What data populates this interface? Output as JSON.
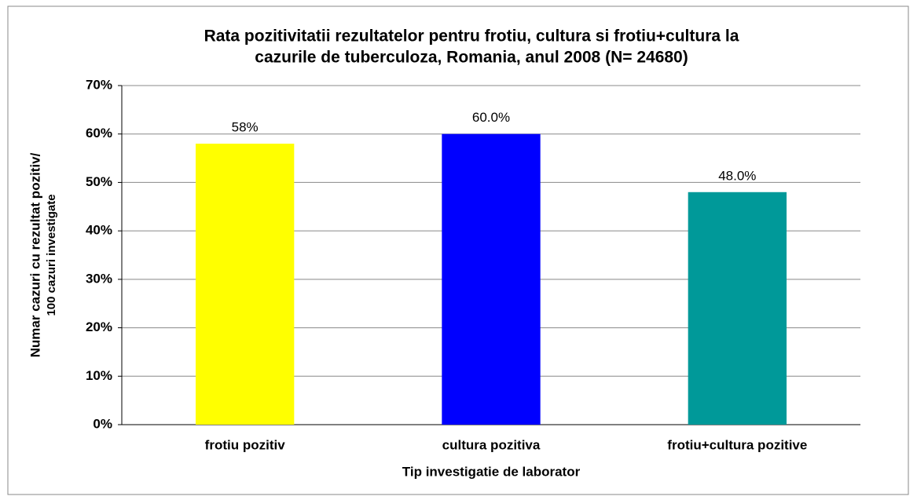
{
  "chart_data": {
    "type": "bar",
    "title": [
      "Rata pozitivitatii rezultatelor pentru frotiu, cultura si frotiu+cultura la",
      "cazurile de tuberculoza, Romania, anul 2008 (N= 24680)"
    ],
    "ylabel": [
      "Numar cazuri cu rezultat pozitiv/",
      "100 cazuri investigate"
    ],
    "xlabel": "Tip investigatie de laborator",
    "categories": [
      "frotiu pozitiv",
      "cultura pozitiva",
      "frotiu+cultura pozitive"
    ],
    "values": [
      58,
      60,
      48
    ],
    "value_labels": [
      "58%",
      "60.0%",
      "48.0%"
    ],
    "colors": [
      "#ffff00",
      "#0000ff",
      "#009999"
    ],
    "ylim": [
      0,
      70
    ],
    "yticks": [
      {
        "value": 0,
        "label": "0%"
      },
      {
        "value": 10,
        "label": "10%"
      },
      {
        "value": 20,
        "label": "20%"
      },
      {
        "value": 30,
        "label": "30%"
      },
      {
        "value": 40,
        "label": "40%"
      },
      {
        "value": 50,
        "label": "50%"
      },
      {
        "value": 60,
        "label": "60%"
      },
      {
        "value": 70,
        "label": "70%"
      }
    ],
    "grid": true
  }
}
